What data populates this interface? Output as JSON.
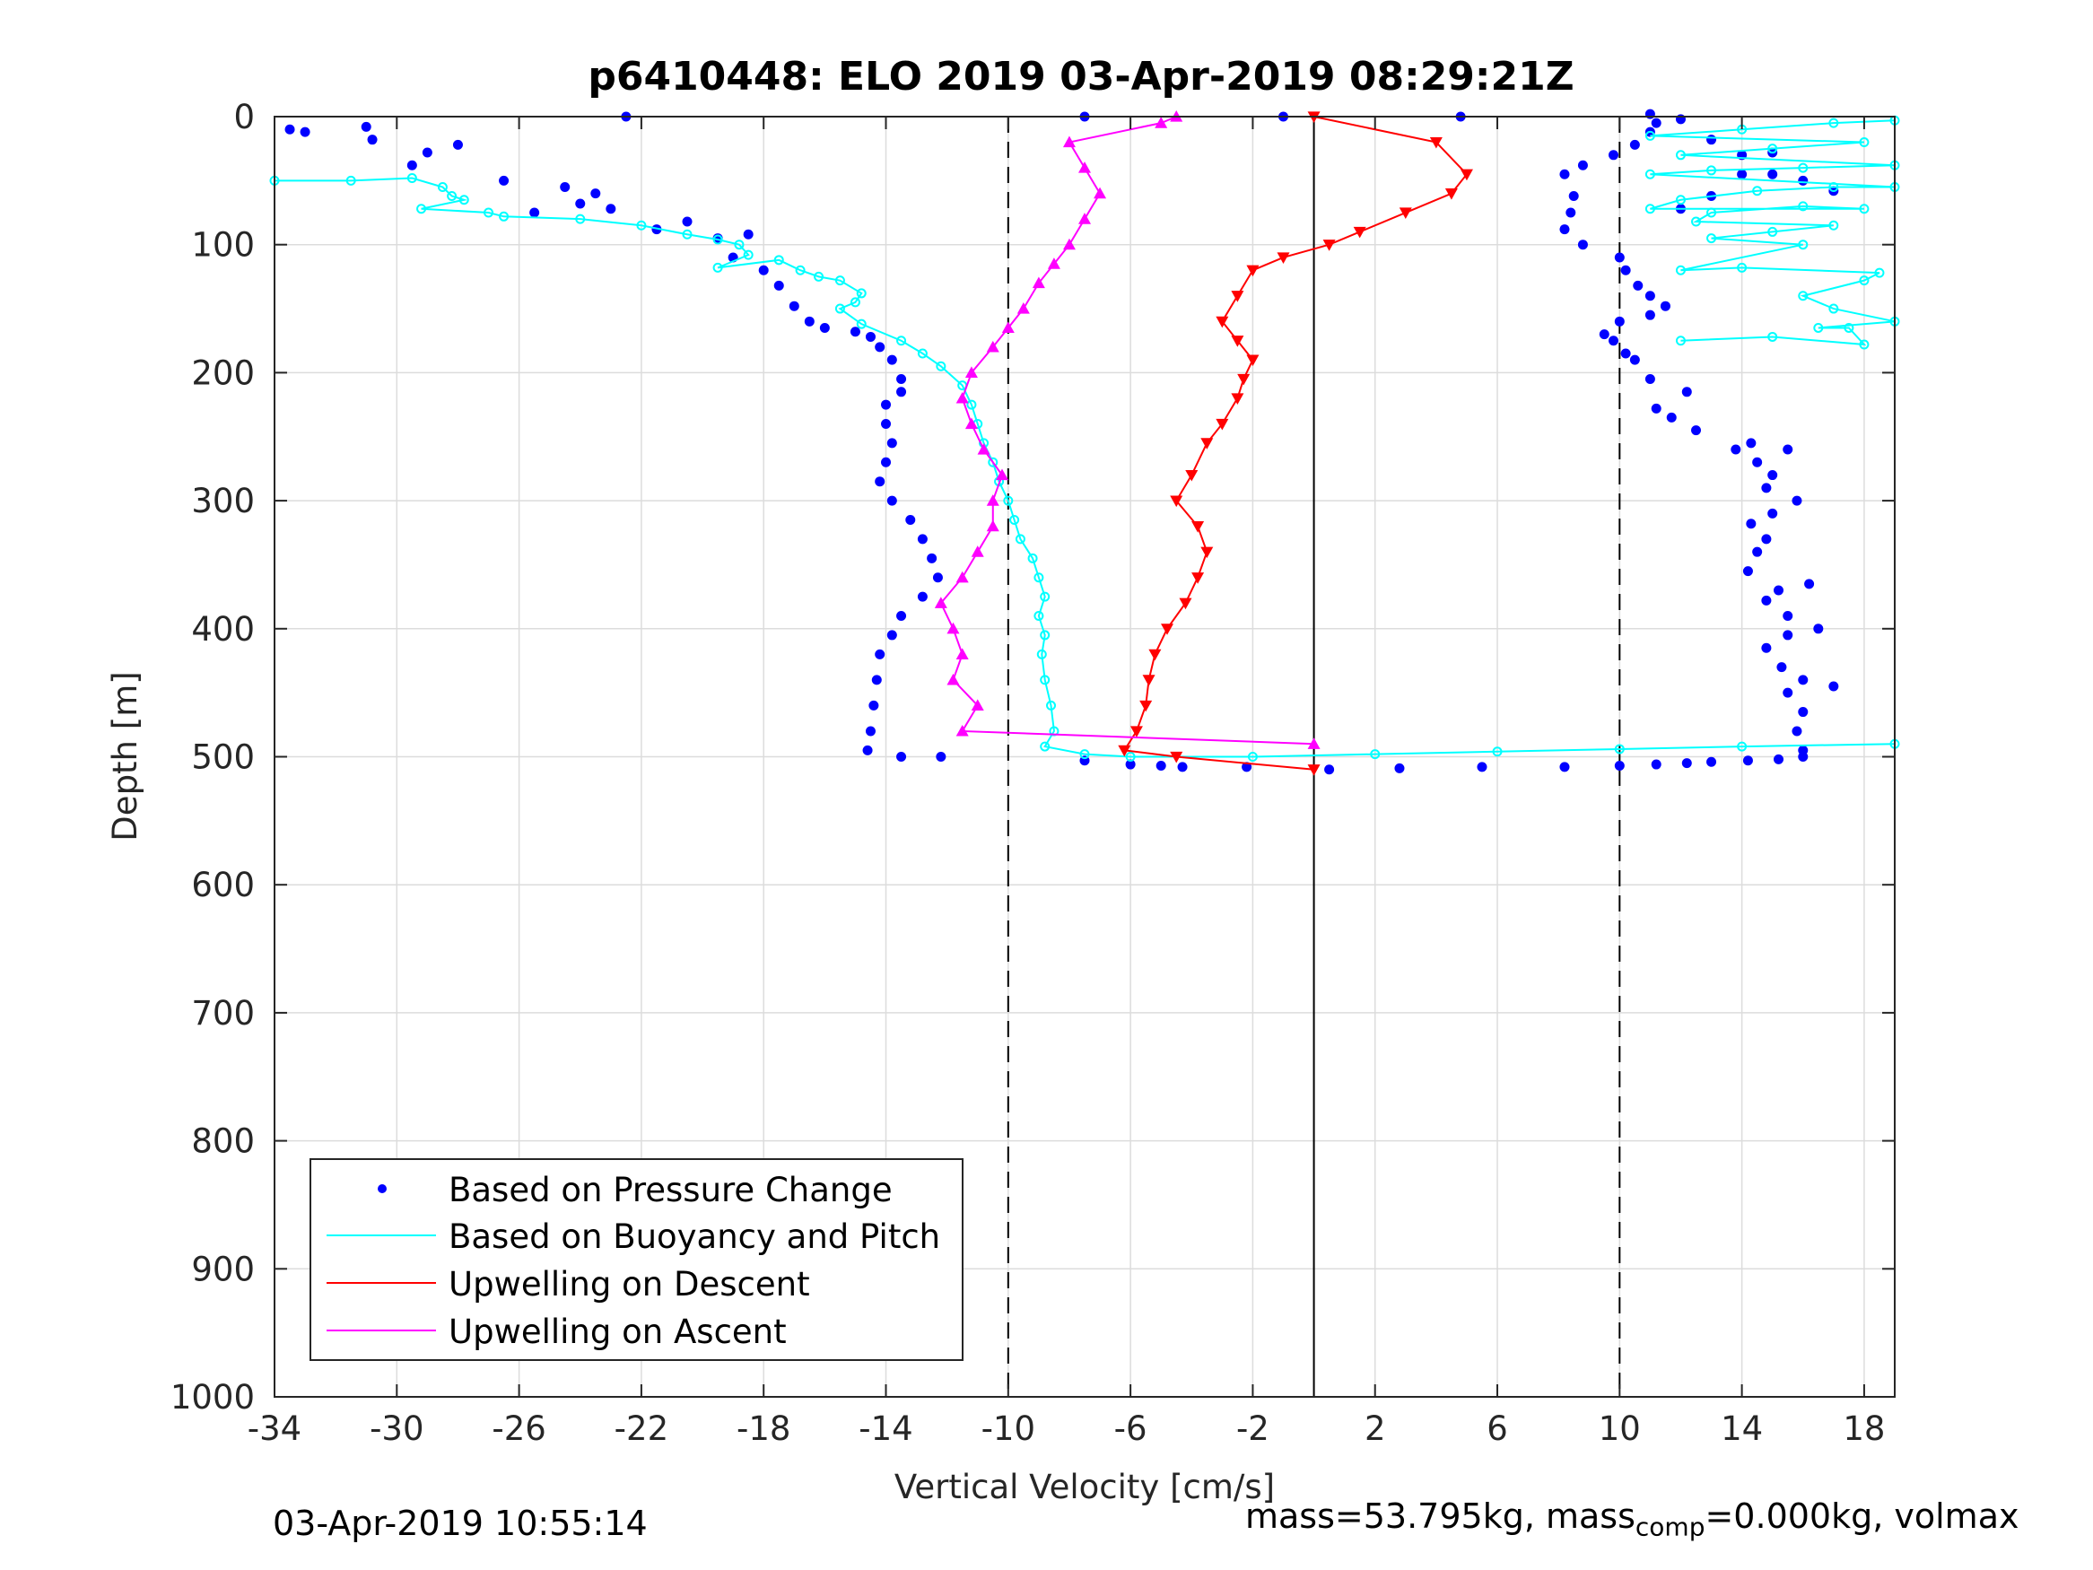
{
  "chart_data": {
    "type": "scatter",
    "title": "p6410448: ELO 2019 03-Apr-2019 08:29:21Z",
    "xlabel": "Vertical Velocity [cm/s]",
    "ylabel": "Depth [m]",
    "xlim": [
      -34,
      19
    ],
    "ylim": [
      0,
      1000
    ],
    "y_reversed": true,
    "x_ticks": [
      -34,
      -30,
      -26,
      -22,
      -18,
      -14,
      -10,
      -6,
      -2,
      2,
      6,
      10,
      14,
      18
    ],
    "y_ticks": [
      0,
      100,
      200,
      300,
      400,
      500,
      600,
      700,
      800,
      900,
      1000
    ],
    "grid": true,
    "legend": {
      "position": "bottom-left",
      "entries": [
        "Based on Pressure Change",
        "Based on Buoyancy and Pitch",
        "Upwelling on Descent",
        "Upwelling on Ascent"
      ]
    },
    "reference_lines": [
      {
        "x": -10,
        "style": "dashed"
      },
      {
        "x": 0,
        "style": "solid"
      },
      {
        "x": 10,
        "style": "dashed"
      }
    ],
    "series": [
      {
        "name": "Based on Pressure Change",
        "color": "#0000ff",
        "marker": "dot",
        "descent": [
          [
            -33.5,
            10
          ],
          [
            -33,
            12
          ],
          [
            -31,
            8
          ],
          [
            -30.8,
            18
          ],
          [
            -29.5,
            38
          ],
          [
            -29,
            28
          ],
          [
            -28,
            22
          ],
          [
            -26.5,
            50
          ],
          [
            -25.5,
            75
          ],
          [
            -24.5,
            55
          ],
          [
            -24,
            68
          ],
          [
            -23.5,
            60
          ],
          [
            -23,
            72
          ],
          [
            -21.5,
            88
          ],
          [
            -20.5,
            82
          ],
          [
            -19.5,
            95
          ],
          [
            -18.5,
            92
          ],
          [
            -19,
            110
          ],
          [
            -18,
            120
          ],
          [
            -17.5,
            132
          ],
          [
            -17,
            148
          ],
          [
            -16.5,
            160
          ],
          [
            -16,
            165
          ],
          [
            -15,
            168
          ],
          [
            -14.5,
            172
          ],
          [
            -14.2,
            180
          ],
          [
            -13.8,
            190
          ],
          [
            -13.5,
            205
          ],
          [
            -13.5,
            215
          ],
          [
            -14,
            225
          ],
          [
            -14,
            240
          ],
          [
            -13.8,
            255
          ],
          [
            -14,
            270
          ],
          [
            -14.2,
            285
          ],
          [
            -13.8,
            300
          ],
          [
            -13.2,
            315
          ],
          [
            -12.8,
            330
          ],
          [
            -12.5,
            345
          ],
          [
            -12.3,
            360
          ],
          [
            -12.8,
            375
          ],
          [
            -13.5,
            390
          ],
          [
            -13.8,
            405
          ],
          [
            -14.2,
            420
          ],
          [
            -14.3,
            440
          ],
          [
            -14.4,
            460
          ],
          [
            -14.5,
            480
          ],
          [
            -14.6,
            495
          ],
          [
            -13.5,
            500
          ],
          [
            -12.2,
            500
          ],
          [
            -7.5,
            503
          ],
          [
            -6,
            506
          ],
          [
            -5,
            507
          ],
          [
            -4.3,
            508
          ],
          [
            -2.2,
            508
          ],
          [
            0.5,
            510
          ],
          [
            2.8,
            509
          ],
          [
            5.5,
            508
          ],
          [
            8.2,
            508
          ],
          [
            10,
            507
          ],
          [
            11.2,
            506
          ],
          [
            12.2,
            505
          ],
          [
            13,
            504
          ],
          [
            14.2,
            503
          ],
          [
            15.2,
            502
          ],
          [
            16,
            500
          ]
        ],
        "ascent": [
          [
            16,
            495
          ],
          [
            15.8,
            480
          ],
          [
            16,
            465
          ],
          [
            15.5,
            450
          ],
          [
            16,
            440
          ],
          [
            17,
            445
          ],
          [
            15.3,
            430
          ],
          [
            14.8,
            415
          ],
          [
            15.5,
            405
          ],
          [
            16.5,
            400
          ],
          [
            15.5,
            390
          ],
          [
            14.8,
            378
          ],
          [
            15.2,
            370
          ],
          [
            16.2,
            365
          ],
          [
            14.2,
            355
          ],
          [
            14.5,
            340
          ],
          [
            14.8,
            330
          ],
          [
            14.3,
            318
          ],
          [
            15,
            310
          ],
          [
            15.8,
            300
          ],
          [
            14.8,
            290
          ],
          [
            15,
            280
          ],
          [
            14.5,
            270
          ],
          [
            15.5,
            260
          ],
          [
            14.3,
            255
          ],
          [
            13.8,
            260
          ],
          [
            12.5,
            245
          ],
          [
            11.7,
            235
          ],
          [
            11.2,
            228
          ],
          [
            12.2,
            215
          ],
          [
            11,
            205
          ],
          [
            10.5,
            190
          ],
          [
            10.2,
            185
          ],
          [
            9.8,
            175
          ],
          [
            9.5,
            170
          ],
          [
            10,
            160
          ],
          [
            11,
            155
          ],
          [
            11.5,
            148
          ],
          [
            11,
            140
          ],
          [
            10.6,
            132
          ],
          [
            10.2,
            120
          ],
          [
            10,
            110
          ],
          [
            8.8,
            100
          ],
          [
            8.2,
            88
          ],
          [
            8.4,
            75
          ],
          [
            8.5,
            62
          ],
          [
            8.2,
            45
          ],
          [
            8.8,
            38
          ],
          [
            9.8,
            30
          ],
          [
            10.5,
            22
          ],
          [
            11,
            12
          ],
          [
            11.2,
            5
          ],
          [
            13,
            18
          ],
          [
            14,
            30
          ],
          [
            15,
            45
          ],
          [
            16,
            50
          ],
          [
            17,
            58
          ],
          [
            12,
            72
          ],
          [
            13,
            62
          ],
          [
            14,
            45
          ],
          [
            15,
            28
          ],
          [
            11,
            -2
          ],
          [
            12,
            2
          ],
          [
            4.8,
            0
          ],
          [
            -1,
            0
          ],
          [
            -7.5,
            0
          ],
          [
            -22.5,
            0
          ]
        ]
      },
      {
        "name": "Based on Buoyancy and Pitch",
        "color": "#00ffff",
        "marker": "circle-line",
        "descent": [
          [
            -34,
            50
          ],
          [
            -31.5,
            50
          ],
          [
            -29.5,
            48
          ],
          [
            -28.5,
            55
          ],
          [
            -28.2,
            62
          ],
          [
            -27.8,
            65
          ],
          [
            -29.2,
            72
          ],
          [
            -27,
            75
          ],
          [
            -26.5,
            78
          ],
          [
            -24,
            80
          ],
          [
            -22,
            85
          ],
          [
            -20.5,
            92
          ],
          [
            -19.5,
            96
          ],
          [
            -18.8,
            100
          ],
          [
            -18.5,
            108
          ],
          [
            -19.5,
            118
          ],
          [
            -17.5,
            112
          ],
          [
            -16.8,
            120
          ],
          [
            -16.2,
            125
          ],
          [
            -15.5,
            128
          ],
          [
            -14.8,
            138
          ],
          [
            -15,
            145
          ],
          [
            -15.5,
            150
          ],
          [
            -14.8,
            162
          ],
          [
            -13.5,
            175
          ],
          [
            -12.8,
            185
          ],
          [
            -12.2,
            195
          ],
          [
            -11.5,
            210
          ],
          [
            -11.2,
            225
          ],
          [
            -11,
            240
          ],
          [
            -10.8,
            255
          ],
          [
            -10.5,
            270
          ],
          [
            -10.3,
            285
          ],
          [
            -10,
            300
          ],
          [
            -9.8,
            315
          ],
          [
            -9.6,
            330
          ],
          [
            -9.2,
            345
          ],
          [
            -9,
            360
          ],
          [
            -8.8,
            375
          ],
          [
            -9,
            390
          ],
          [
            -8.8,
            405
          ],
          [
            -8.9,
            420
          ],
          [
            -8.8,
            440
          ],
          [
            -8.6,
            460
          ],
          [
            -8.5,
            480
          ],
          [
            -8.8,
            492
          ],
          [
            -7.5,
            498
          ],
          [
            -6,
            500
          ],
          [
            -2,
            500
          ],
          [
            2,
            498
          ],
          [
            6,
            496
          ],
          [
            10,
            494
          ],
          [
            14,
            492
          ],
          [
            19,
            490
          ]
        ],
        "ascent": [
          [
            12,
            175
          ],
          [
            15,
            172
          ],
          [
            18,
            178
          ],
          [
            17.5,
            165
          ],
          [
            16.5,
            165
          ],
          [
            19,
            160
          ],
          [
            17,
            150
          ],
          [
            16,
            140
          ],
          [
            18,
            128
          ],
          [
            18.5,
            122
          ],
          [
            14,
            118
          ],
          [
            12,
            120
          ],
          [
            16,
            100
          ],
          [
            13,
            95
          ],
          [
            15,
            90
          ],
          [
            17,
            85
          ],
          [
            12.5,
            82
          ],
          [
            13,
            75
          ],
          [
            16,
            70
          ],
          [
            18,
            72
          ],
          [
            11,
            72
          ],
          [
            12,
            65
          ],
          [
            14.5,
            58
          ],
          [
            17,
            55
          ],
          [
            19,
            55
          ],
          [
            11,
            45
          ],
          [
            13,
            42
          ],
          [
            16,
            40
          ],
          [
            19,
            38
          ],
          [
            12,
            30
          ],
          [
            15,
            25
          ],
          [
            18,
            20
          ],
          [
            11,
            15
          ],
          [
            14,
            10
          ],
          [
            17,
            5
          ],
          [
            19,
            3
          ]
        ]
      },
      {
        "name": "Upwelling on Descent",
        "color": "#ff0000",
        "marker": "triangle-down",
        "values": [
          [
            0,
            0
          ],
          [
            4,
            20
          ],
          [
            5,
            45
          ],
          [
            4.5,
            60
          ],
          [
            3,
            75
          ],
          [
            1.5,
            90
          ],
          [
            0.5,
            100
          ],
          [
            -1,
            110
          ],
          [
            -2,
            120
          ],
          [
            -2.5,
            140
          ],
          [
            -3,
            160
          ],
          [
            -2.5,
            175
          ],
          [
            -2,
            190
          ],
          [
            -2.3,
            205
          ],
          [
            -2.5,
            220
          ],
          [
            -3,
            240
          ],
          [
            -3.5,
            255
          ],
          [
            -4,
            280
          ],
          [
            -4.5,
            300
          ],
          [
            -3.8,
            320
          ],
          [
            -3.5,
            340
          ],
          [
            -3.8,
            360
          ],
          [
            -4.2,
            380
          ],
          [
            -4.8,
            400
          ],
          [
            -5.2,
            420
          ],
          [
            -5.4,
            440
          ],
          [
            -5.5,
            460
          ],
          [
            -5.8,
            480
          ],
          [
            -6.2,
            495
          ],
          [
            -4.5,
            500
          ],
          [
            0,
            510
          ]
        ]
      },
      {
        "name": "Upwelling on Ascent",
        "color": "#ff00ff",
        "marker": "triangle-up",
        "values": [
          [
            0,
            490
          ],
          [
            -11.5,
            480
          ],
          [
            -11,
            460
          ],
          [
            -11.8,
            440
          ],
          [
            -11.5,
            420
          ],
          [
            -11.8,
            400
          ],
          [
            -12.2,
            380
          ],
          [
            -11.5,
            360
          ],
          [
            -11,
            340
          ],
          [
            -10.5,
            320
          ],
          [
            -10.5,
            300
          ],
          [
            -10.2,
            280
          ],
          [
            -10.8,
            260
          ],
          [
            -11.2,
            240
          ],
          [
            -11.5,
            220
          ],
          [
            -11.2,
            200
          ],
          [
            -10.5,
            180
          ],
          [
            -10,
            165
          ],
          [
            -9.5,
            150
          ],
          [
            -9,
            130
          ],
          [
            -8.5,
            115
          ],
          [
            -8,
            100
          ],
          [
            -7.5,
            80
          ],
          [
            -7,
            60
          ],
          [
            -7.5,
            40
          ],
          [
            -8,
            20
          ],
          [
            -5,
            5
          ],
          [
            -4.5,
            0
          ]
        ]
      }
    ]
  },
  "footer": {
    "timestamp": "03-Apr-2019 10:55:14",
    "mass_prefix": "mass=53.795kg, mass",
    "mass_sub": "comp",
    "mass_suffix": "=0.000kg, volmax"
  }
}
